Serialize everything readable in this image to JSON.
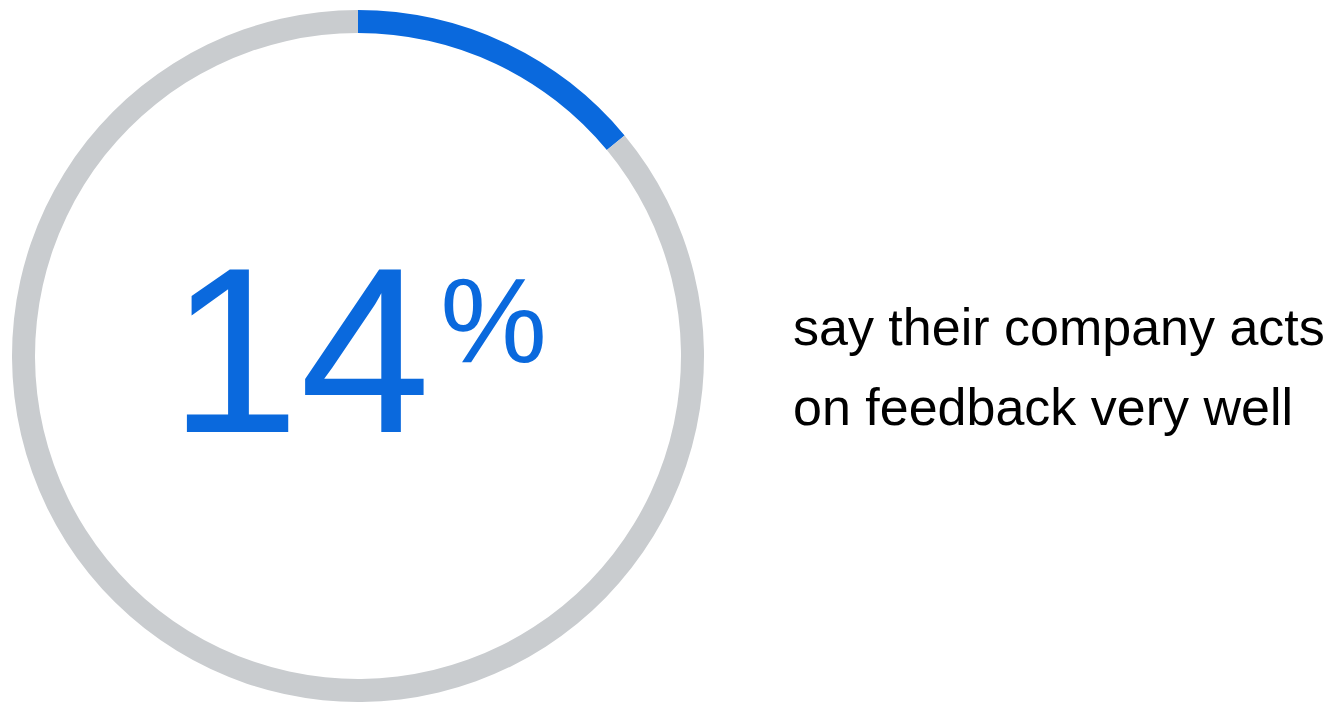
{
  "chart_data": {
    "type": "donut",
    "categories": [
      null,
      null
    ],
    "values": [
      14,
      86
    ],
    "colors": [
      "#0a69dd",
      "#c9cccf"
    ],
    "value_labels": [
      "14$^{%}$",
      null
    ],
    "annotations": [
      "say their company acts on feedback very well"
    ]
  }
}
